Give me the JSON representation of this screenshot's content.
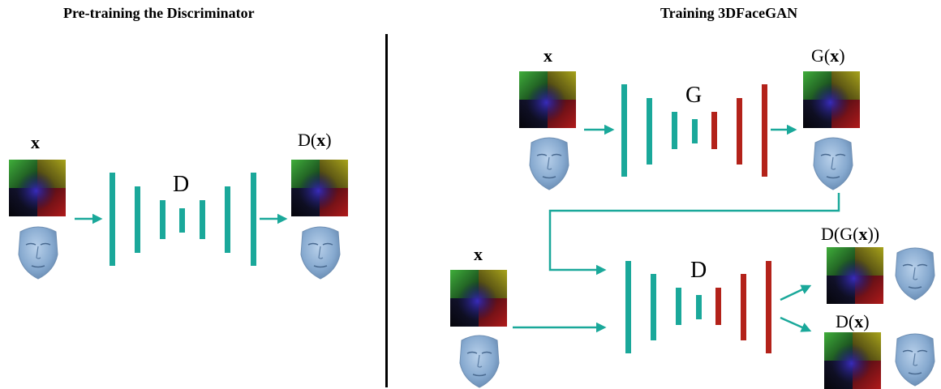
{
  "left": {
    "title": "Pre-training the Discriminator",
    "input_label": "x",
    "network_label": "D",
    "output_label_prefix": "D(",
    "output_label_var": "x",
    "output_label_suffix": ")"
  },
  "right": {
    "title": "Training 3DFaceGAN",
    "gen_input_label": "x",
    "generator_label": "G",
    "gen_output_prefix": "G(",
    "gen_output_var": "x",
    "gen_output_suffix": ")",
    "disc_input_label": "x",
    "discriminator_label": "D",
    "disc_out1_prefix": "D(G(",
    "disc_out1_var": "x",
    "disc_out1_suffix": "))",
    "disc_out2_prefix": "D(",
    "disc_out2_var": "x",
    "disc_out2_suffix": ")"
  },
  "colors": {
    "encoder": "#1aa89a",
    "decoder": "#b3221a",
    "arrow": "#1aa89a",
    "face": "#8aaed1",
    "divider": "#000000"
  },
  "icons": {
    "geometry_image": "uv-geometry-map-icon",
    "face": "3d-face-mesh-icon"
  }
}
